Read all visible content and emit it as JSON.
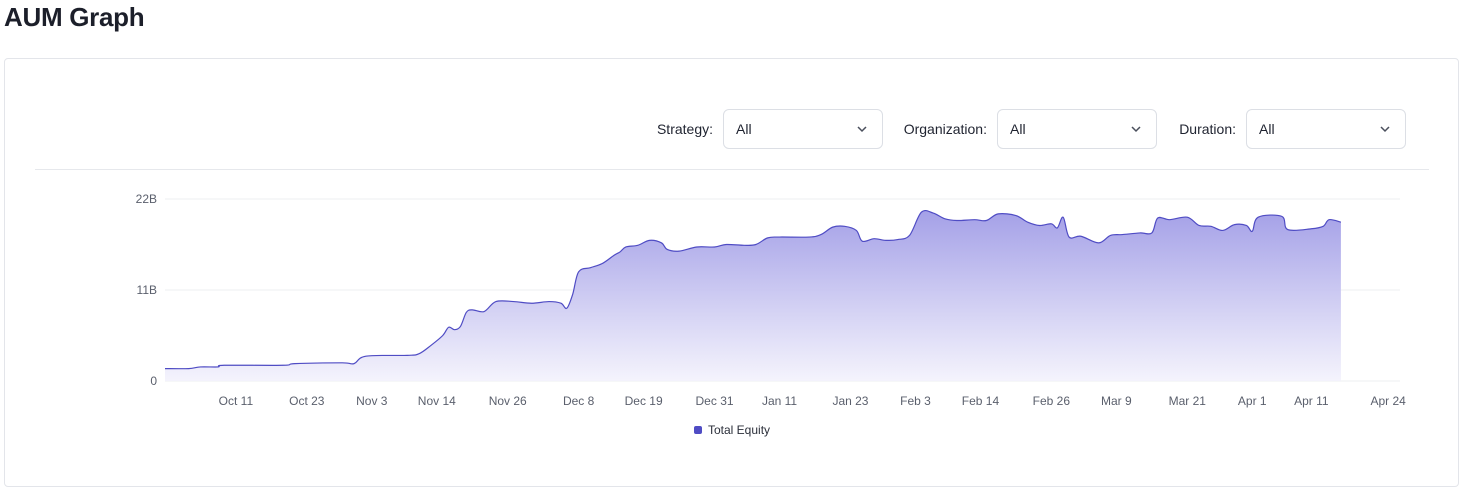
{
  "page": {
    "title": "AUM Graph"
  },
  "filters": [
    {
      "key": "strategy",
      "label": "Strategy:",
      "value": "All"
    },
    {
      "key": "organization",
      "label": "Organization:",
      "value": "All"
    },
    {
      "key": "duration",
      "label": "Duration:",
      "value": "All"
    }
  ],
  "colors": {
    "line": "#4f4cc4",
    "fill_top": "#9f9be6",
    "fill_bottom": "#f3f2fc",
    "grid": "#eeeff2",
    "tick_text": "#5a5f6c"
  },
  "chart_data": {
    "type": "area",
    "title": "",
    "xlabel": "",
    "ylabel": "",
    "y_ticks": [
      {
        "value": 0,
        "label": "0"
      },
      {
        "value": 11,
        "label": "11B"
      },
      {
        "value": 22,
        "label": "22B"
      }
    ],
    "ylim": [
      0,
      22
    ],
    "x_ticks": [
      {
        "pos": 7,
        "label": "Oct 11"
      },
      {
        "pos": 19,
        "label": "Oct 23"
      },
      {
        "pos": 30,
        "label": "Nov 3"
      },
      {
        "pos": 41,
        "label": "Nov 14"
      },
      {
        "pos": 53,
        "label": "Nov 26"
      },
      {
        "pos": 65,
        "label": "Dec 8"
      },
      {
        "pos": 76,
        "label": "Dec 19"
      },
      {
        "pos": 88,
        "label": "Dec 31"
      },
      {
        "pos": 99,
        "label": "Jan 11"
      },
      {
        "pos": 111,
        "label": "Jan 23"
      },
      {
        "pos": 122,
        "label": "Feb 3"
      },
      {
        "pos": 133,
        "label": "Feb 14"
      },
      {
        "pos": 145,
        "label": "Feb 26"
      },
      {
        "pos": 156,
        "label": "Mar 9"
      },
      {
        "pos": 168,
        "label": "Mar 21"
      },
      {
        "pos": 179,
        "label": "Apr 1"
      },
      {
        "pos": 189,
        "label": "Apr 11"
      },
      {
        "pos": 202,
        "label": "Apr 24"
      }
    ],
    "xlim": [
      -5,
      204
    ],
    "legend": {
      "placement": "bottom-center"
    },
    "series": [
      {
        "name": "Total Equity",
        "points": [
          [
            -5,
            1.5
          ],
          [
            -1,
            1.5
          ],
          [
            1,
            1.7
          ],
          [
            4,
            1.7
          ],
          [
            5,
            1.9
          ],
          [
            15,
            1.9
          ],
          [
            17,
            2.1
          ],
          [
            25,
            2.2
          ],
          [
            27,
            2.1
          ],
          [
            29,
            3.0
          ],
          [
            36,
            3.1
          ],
          [
            38,
            3.3
          ],
          [
            40,
            4.3
          ],
          [
            42,
            5.5
          ],
          [
            43,
            6.5
          ],
          [
            44,
            6.2
          ],
          [
            45,
            6.6
          ],
          [
            46,
            8.3
          ],
          [
            47,
            8.6
          ],
          [
            49,
            8.4
          ],
          [
            51,
            9.6
          ],
          [
            54,
            9.6
          ],
          [
            57,
            9.4
          ],
          [
            60,
            9.6
          ],
          [
            62,
            9.4
          ],
          [
            63,
            8.8
          ],
          [
            64,
            10.5
          ],
          [
            65,
            13.2
          ],
          [
            67,
            13.7
          ],
          [
            69,
            14.2
          ],
          [
            71,
            15.2
          ],
          [
            72,
            15.6
          ],
          [
            73,
            16.2
          ],
          [
            75,
            16.4
          ],
          [
            77,
            17.0
          ],
          [
            79,
            16.7
          ],
          [
            80,
            15.9
          ],
          [
            82,
            15.7
          ],
          [
            85,
            16.2
          ],
          [
            88,
            16.2
          ],
          [
            90,
            16.5
          ],
          [
            93,
            16.4
          ],
          [
            95,
            16.5
          ],
          [
            97,
            17.3
          ],
          [
            99,
            17.4
          ],
          [
            104,
            17.4
          ],
          [
            106,
            17.7
          ],
          [
            108,
            18.6
          ],
          [
            110,
            18.7
          ],
          [
            112,
            18.2
          ],
          [
            113,
            16.9
          ],
          [
            115,
            17.2
          ],
          [
            117,
            17.0
          ],
          [
            119,
            17.1
          ],
          [
            121,
            17.6
          ],
          [
            123,
            20.4
          ],
          [
            125,
            20.3
          ],
          [
            127,
            19.6
          ],
          [
            129,
            19.4
          ],
          [
            132,
            19.5
          ],
          [
            134,
            19.4
          ],
          [
            136,
            20.2
          ],
          [
            139,
            20.0
          ],
          [
            141,
            19.2
          ],
          [
            143,
            18.8
          ],
          [
            145,
            19.0
          ],
          [
            146,
            18.5
          ],
          [
            147,
            19.8
          ],
          [
            148,
            17.4
          ],
          [
            150,
            17.5
          ],
          [
            153,
            16.7
          ],
          [
            155,
            17.6
          ],
          [
            157,
            17.7
          ],
          [
            160,
            17.9
          ],
          [
            162,
            17.9
          ],
          [
            163,
            19.7
          ],
          [
            165,
            19.5
          ],
          [
            168,
            19.8
          ],
          [
            170,
            18.8
          ],
          [
            172,
            18.7
          ],
          [
            174,
            18.2
          ],
          [
            176,
            18.9
          ],
          [
            178,
            18.8
          ],
          [
            179,
            18.1
          ],
          [
            180,
            19.8
          ],
          [
            184,
            19.9
          ],
          [
            185,
            18.3
          ],
          [
            189,
            18.4
          ],
          [
            191,
            18.7
          ],
          [
            192,
            19.5
          ],
          [
            194,
            19.2
          ]
        ]
      }
    ]
  }
}
